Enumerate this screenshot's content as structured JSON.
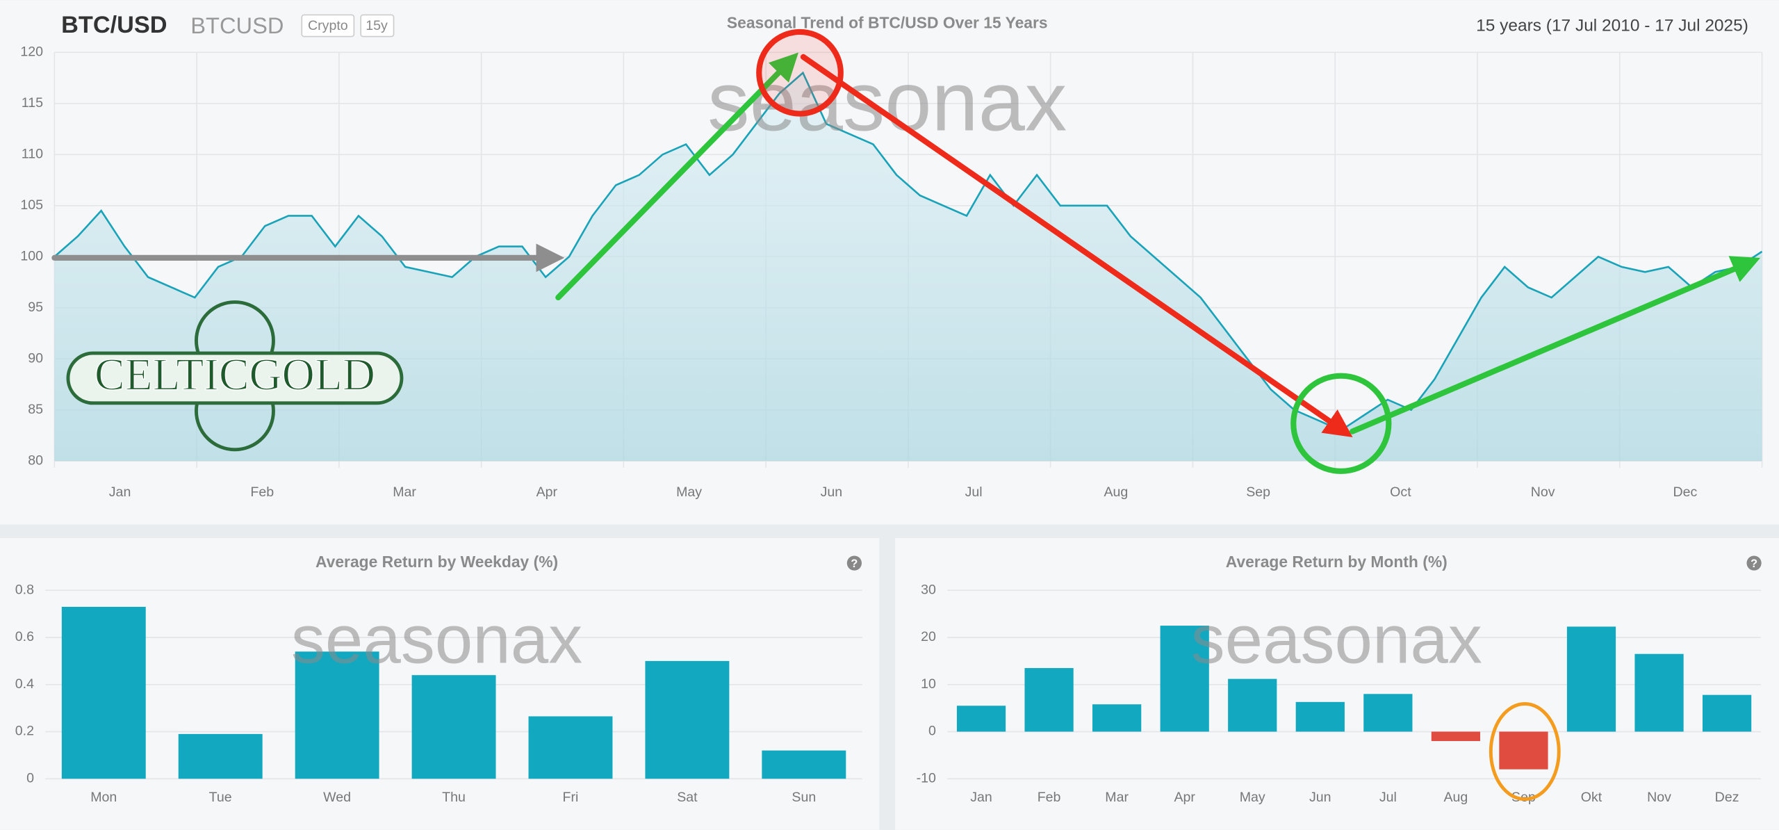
{
  "header": {
    "symbol": "BTC/USD",
    "ticker": "BTCUSD",
    "badges": [
      "Crypto",
      "15y"
    ],
    "period": "15 years (17 Jul 2010 - 17 Jul 2025)",
    "watermark": "seasonax",
    "logo": "CELTICGOLD"
  },
  "chart_data": [
    {
      "type": "line",
      "title": "Seasonal Trend of BTC/USD Over 15 Years",
      "color": "#1aa3b8",
      "month_labels": [
        "Jan",
        "Feb",
        "Mar",
        "Apr",
        "May",
        "Jun",
        "Jul",
        "Aug",
        "Sep",
        "Oct",
        "Nov",
        "Dec"
      ],
      "values": [
        100,
        102,
        104.5,
        101,
        98,
        97,
        96,
        99,
        100,
        103,
        104,
        104,
        101,
        104,
        102,
        99,
        98.5,
        98,
        100,
        101,
        101,
        98,
        100,
        104,
        107,
        108,
        110,
        111,
        108,
        110,
        113,
        116,
        118,
        113,
        112,
        111,
        108,
        106,
        105,
        104,
        108,
        105,
        108,
        105,
        105,
        105,
        102,
        100,
        98,
        96,
        93,
        90,
        87,
        85,
        84,
        83,
        84.5,
        86,
        85,
        88,
        92,
        96,
        99,
        97,
        96,
        98,
        100,
        99,
        98.5,
        99,
        97,
        98.5,
        99,
        100.5
      ],
      "ylim": [
        80,
        120
      ],
      "yticks": [
        80,
        85,
        90,
        95,
        100,
        105,
        110,
        115,
        120
      ],
      "grid": true
    },
    {
      "type": "bar",
      "title": "Average Return by Weekday (%)",
      "help": "?",
      "categories": [
        "Mon",
        "Tue",
        "Wed",
        "Thu",
        "Fri",
        "Sat",
        "Sun"
      ],
      "values": [
        0.73,
        0.19,
        0.54,
        0.44,
        0.265,
        0.5,
        0.12
      ],
      "color": "#12a8c0",
      "negative_color": "#e04c3f",
      "ylim": [
        0,
        0.8
      ],
      "yticks": [
        0,
        0.2,
        0.4,
        0.6,
        0.8
      ],
      "grid": true
    },
    {
      "type": "bar",
      "title": "Average Return by Month (%)",
      "help": "?",
      "categories": [
        "Jan",
        "Feb",
        "Mar",
        "Apr",
        "May",
        "Jun",
        "Jul",
        "Aug",
        "Sep",
        "Okt",
        "Nov",
        "Dez"
      ],
      "values": [
        5.5,
        13.5,
        5.8,
        22.5,
        11.2,
        6.3,
        8,
        -2,
        -8,
        22.3,
        16.5,
        7.8
      ],
      "color": "#12a8c0",
      "negative_color": "#e04c3f",
      "ylim": [
        -10,
        30
      ],
      "yticks": [
        -10,
        0,
        10,
        20,
        30
      ],
      "grid": true
    }
  ]
}
